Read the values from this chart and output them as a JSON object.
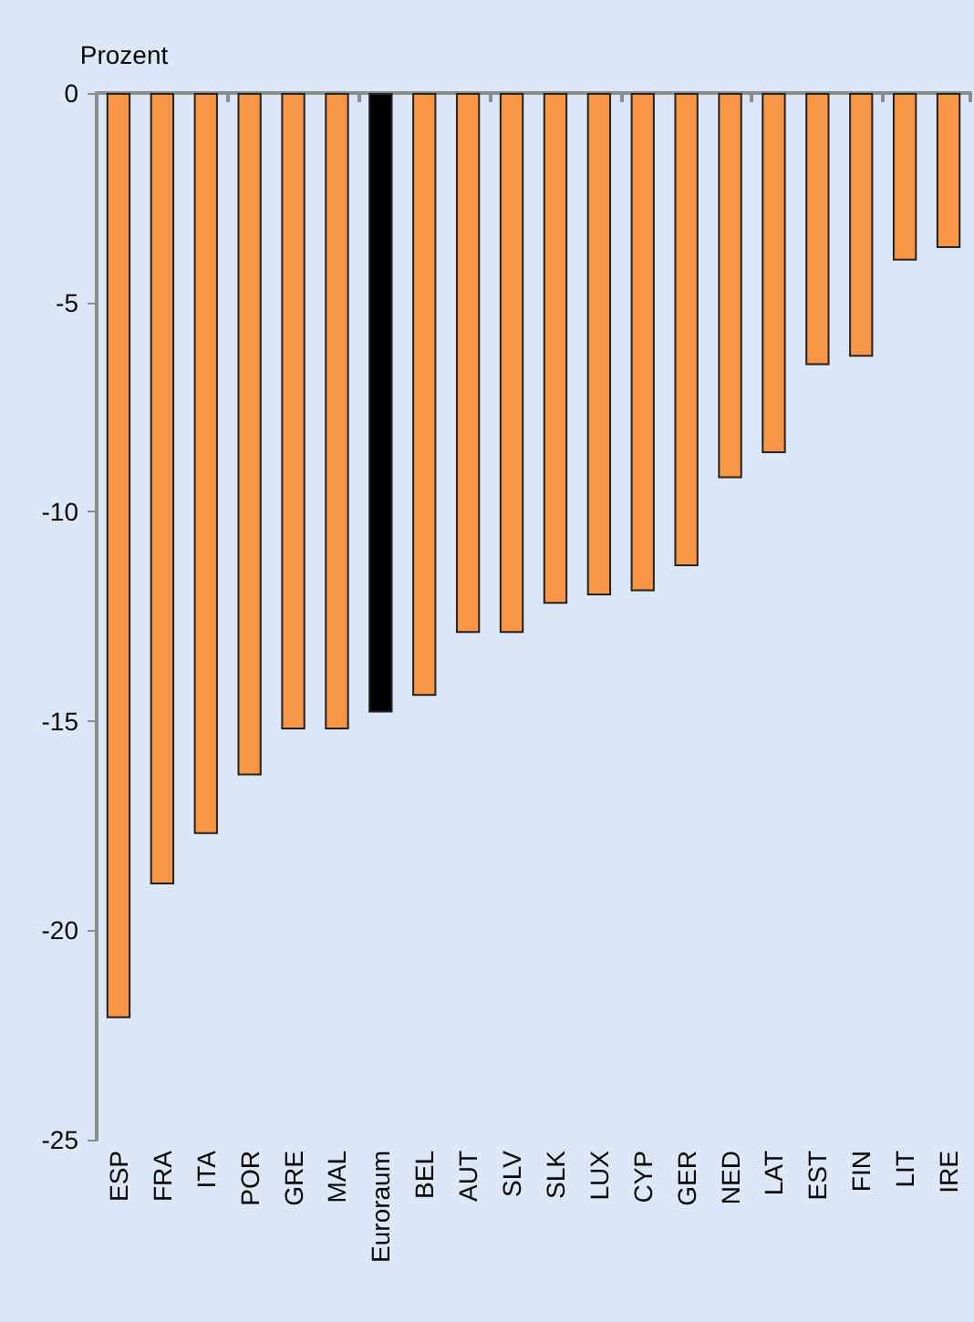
{
  "chart_data": {
    "type": "bar",
    "ylabel": "Prozent",
    "categories": [
      "ESP",
      "FRA",
      "ITA",
      "POR",
      "GRE",
      "MAL",
      "Euroraum",
      "BEL",
      "AUT",
      "SLV",
      "SLK",
      "LUX",
      "CYP",
      "GER",
      "NED",
      "LAT",
      "EST",
      "FIN",
      "LIT",
      "IRE"
    ],
    "values": [
      -22.1,
      -18.9,
      -17.7,
      -16.3,
      -15.2,
      -15.2,
      -14.8,
      -14.4,
      -12.9,
      -12.9,
      -12.2,
      -12.0,
      -11.9,
      -11.3,
      -9.2,
      -8.6,
      -6.5,
      -6.3,
      -4.0,
      -3.7
    ],
    "colors": [
      "#f79646",
      "#f79646",
      "#f79646",
      "#f79646",
      "#f79646",
      "#f79646",
      "#000000",
      "#f79646",
      "#f79646",
      "#f79646",
      "#f79646",
      "#f79646",
      "#f79646",
      "#f79646",
      "#f79646",
      "#f79646",
      "#f79646",
      "#f79646",
      "#f79646",
      "#f79646"
    ],
    "ylim": [
      -25,
      0
    ],
    "yticks": [
      -25,
      -20,
      -15,
      -10,
      -5,
      0
    ],
    "grid": false
  }
}
